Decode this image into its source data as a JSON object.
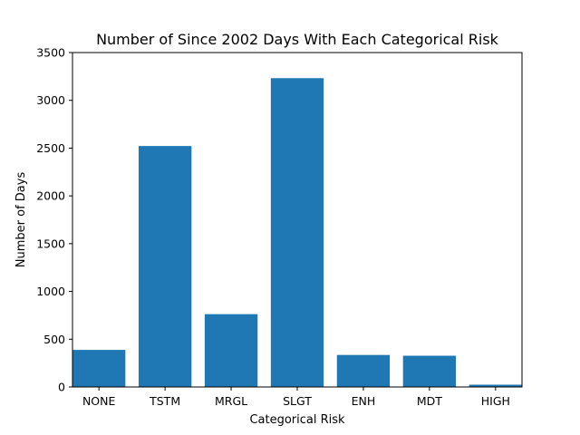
{
  "chart_data": {
    "type": "bar",
    "title": "Number of Since 2002 Days With Each Categorical Risk",
    "xlabel": "Categorical Risk",
    "ylabel": "Number of Days",
    "categories": [
      "NONE",
      "TSTM",
      "MRGL",
      "SLGT",
      "ENH",
      "MDT",
      "HIGH"
    ],
    "values": [
      388,
      2522,
      762,
      3232,
      335,
      327,
      24
    ],
    "ylim": [
      0,
      3500
    ],
    "yticks": [
      0,
      500,
      1000,
      1500,
      2000,
      2500,
      3000,
      3500
    ],
    "grid": false,
    "legend": "none",
    "bar_color": "#1f77b4"
  }
}
